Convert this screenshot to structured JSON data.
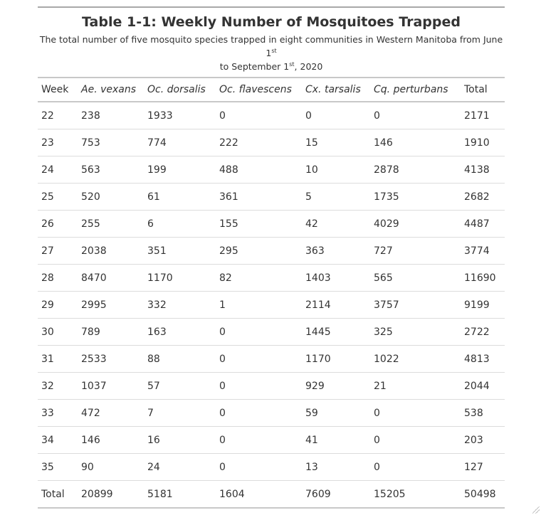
{
  "table": {
    "title": "Table 1-1: Weekly Number of Mosquitoes Trapped",
    "caption": {
      "part1": "The total number of five mosquito species trapped in eight communities in Western Manitoba from June 1",
      "sup1": "st",
      "part2": " to September 1",
      "sup2": "st",
      "part3": ", 2020"
    },
    "headers": [
      "Week",
      "Ae. vexans",
      "Oc. dorsalis",
      "Oc. flavescens",
      "Cx. tarsalis",
      "Cq. perturbans",
      "Total"
    ],
    "rows": [
      [
        "22",
        "238",
        "1933",
        "0",
        "0",
        "0",
        "2171"
      ],
      [
        "23",
        "753",
        "774",
        "222",
        "15",
        "146",
        "1910"
      ],
      [
        "24",
        "563",
        "199",
        "488",
        "10",
        "2878",
        "4138"
      ],
      [
        "25",
        "520",
        "61",
        "361",
        "5",
        "1735",
        "2682"
      ],
      [
        "26",
        "255",
        "6",
        "155",
        "42",
        "4029",
        "4487"
      ],
      [
        "27",
        "2038",
        "351",
        "295",
        "363",
        "727",
        "3774"
      ],
      [
        "28",
        "8470",
        "1170",
        "82",
        "1403",
        "565",
        "11690"
      ],
      [
        "29",
        "2995",
        "332",
        "1",
        "2114",
        "3757",
        "9199"
      ],
      [
        "30",
        "789",
        "163",
        "0",
        "1445",
        "325",
        "2722"
      ],
      [
        "31",
        "2533",
        "88",
        "0",
        "1170",
        "1022",
        "4813"
      ],
      [
        "32",
        "1037",
        "57",
        "0",
        "929",
        "21",
        "2044"
      ],
      [
        "33",
        "472",
        "7",
        "0",
        "59",
        "0",
        "538"
      ],
      [
        "34",
        "146",
        "16",
        "0",
        "41",
        "0",
        "203"
      ],
      [
        "35",
        "90",
        "24",
        "0",
        "13",
        "0",
        "127"
      ],
      [
        "Total",
        "20899",
        "5181",
        "1604",
        "7609",
        "15205",
        "50498"
      ]
    ]
  }
}
